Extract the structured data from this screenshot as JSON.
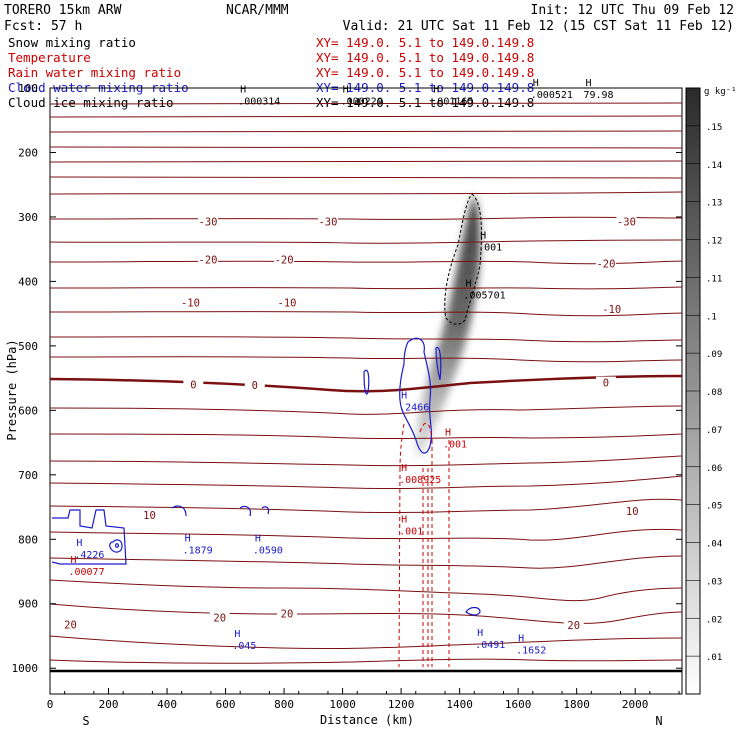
{
  "header": {
    "model": "TORERO  15km ARW",
    "center": "NCAR/MMM",
    "init": "Init: 12 UTC Thu 09 Feb 12",
    "fcst": "Fcst:   57 h",
    "valid": "Valid: 21 UTC Sat 11 Feb 12 (15 CST Sat 11 Feb 12)"
  },
  "fields": [
    {
      "label": "Snow mixing ratio",
      "xy": "XY= 149.0.  5.1 to 149.0.149.8",
      "color": "#000000"
    },
    {
      "label": "Temperature",
      "xy": "XY= 149.0.  5.1 to 149.0.149.8",
      "color": "#cc0000"
    },
    {
      "label": "Rain water mixing ratio",
      "xy": "XY= 149.0.  5.1 to 149.0.149.8",
      "color": "#cc0000"
    },
    {
      "label": "Cloud water mixing ratio",
      "xy": "XY= 149.0.  5.1 to 149.0.149.8",
      "color": "#1a1acc"
    },
    {
      "label": "Cloud ice mixing ratio",
      "xy": "XY= 149.0.  5.1 to 149.0.149.8",
      "color": "#000000"
    }
  ],
  "colorbar": {
    "unit": "g kg⁻¹",
    "levels": [
      ".01",
      ".02",
      ".03",
      ".04",
      ".05",
      ".06",
      ".07",
      ".08",
      ".09",
      ".1",
      ".11",
      ".12",
      ".13",
      ".14",
      ".15"
    ]
  },
  "colors": {
    "temperature": "#7a1010",
    "rain": "#cc0000",
    "cloud_water": "#1a1acc",
    "ice": "#000000"
  },
  "chart_data": {
    "type": "cross-section",
    "xlabel": "Distance (km)",
    "ylabel": "Pressure (hPa)",
    "xlim": [
      0,
      2160
    ],
    "ylim": [
      1040,
      100
    ],
    "xticks": [
      0,
      200,
      400,
      600,
      800,
      1000,
      1200,
      1400,
      1600,
      1800,
      2000
    ],
    "yticks": [
      100,
      200,
      300,
      400,
      500,
      600,
      700,
      800,
      900,
      1000
    ],
    "x_start_label": "S",
    "x_end_label": "N",
    "temperature_labels": [
      {
        "text": "-30",
        "x": 540,
        "p": 307
      },
      {
        "text": "-30",
        "x": 950,
        "p": 307
      },
      {
        "text": "-30",
        "x": 1970,
        "p": 307
      },
      {
        "text": "-20",
        "x": 540,
        "p": 366
      },
      {
        "text": "-20",
        "x": 800,
        "p": 366
      },
      {
        "text": "-20",
        "x": 1900,
        "p": 372
      },
      {
        "text": "-10",
        "x": 480,
        "p": 433
      },
      {
        "text": "-10",
        "x": 810,
        "p": 433
      },
      {
        "text": "-10",
        "x": 1920,
        "p": 443
      },
      {
        "text": "0",
        "x": 490,
        "p": 560
      },
      {
        "text": "0",
        "x": 700,
        "p": 561
      },
      {
        "text": "0",
        "x": 1900,
        "p": 557
      },
      {
        "text": "10",
        "x": 340,
        "p": 762
      },
      {
        "text": "10",
        "x": 1990,
        "p": 756
      },
      {
        "text": "20",
        "x": 580,
        "p": 921
      },
      {
        "text": "20",
        "x": 810,
        "p": 915
      },
      {
        "text": "20",
        "x": 70,
        "p": 932
      },
      {
        "text": "20",
        "x": 1790,
        "p": 933
      }
    ],
    "highs": [
      {
        "field": "Cloud ice mixing ratio",
        "value": ".000314",
        "x": 650,
        "p": 113
      },
      {
        "field": "Cloud ice mixing ratio",
        "value": ".000220",
        "x": 1000,
        "p": 113
      },
      {
        "field": "Cloud ice mixing ratio",
        "value": ".001165",
        "x": 1310,
        "p": 113
      },
      {
        "field": "Cloud ice mixing ratio",
        "value": ".000521",
        "x": 1650,
        "p": 103
      },
      {
        "field": "Cloud ice mixing ratio",
        "value": "79.98",
        "x": 1830,
        "p": 103
      },
      {
        "field": "Snow mixing ratio",
        "value": ".001",
        "x": 1470,
        "p": 340
      },
      {
        "field": "Snow mixing ratio",
        "value": ".005701",
        "x": 1420,
        "p": 414
      },
      {
        "field": "Cloud water mixing ratio",
        "value": ".2466",
        "x": 1200,
        "p": 588
      },
      {
        "field": "Rain water mixing ratio",
        "value": ".001",
        "x": 1350,
        "p": 645
      },
      {
        "field": "Rain water mixing ratio",
        "value": ".008925",
        "x": 1200,
        "p": 700
      },
      {
        "field": "Rain water mixing ratio",
        "value": ".001",
        "x": 1200,
        "p": 780
      },
      {
        "field": "Cloud water mixing ratio",
        "value": ".4226",
        "x": 90,
        "p": 817
      },
      {
        "field": "Rain water mixing ratio",
        "value": ".00077",
        "x": 70,
        "p": 843
      },
      {
        "field": "Cloud water mixing ratio",
        "value": ".1879",
        "x": 460,
        "p": 810
      },
      {
        "field": "Cloud water mixing ratio",
        "value": ".0590",
        "x": 700,
        "p": 810
      },
      {
        "field": "Cloud water mixing ratio",
        "value": ".045",
        "x": 630,
        "p": 958
      },
      {
        "field": "Cloud water mixing ratio",
        "value": ".0491",
        "x": 1460,
        "p": 956
      },
      {
        "field": "Cloud water mixing ratio",
        "value": ".1652",
        "x": 1600,
        "p": 965
      }
    ]
  }
}
